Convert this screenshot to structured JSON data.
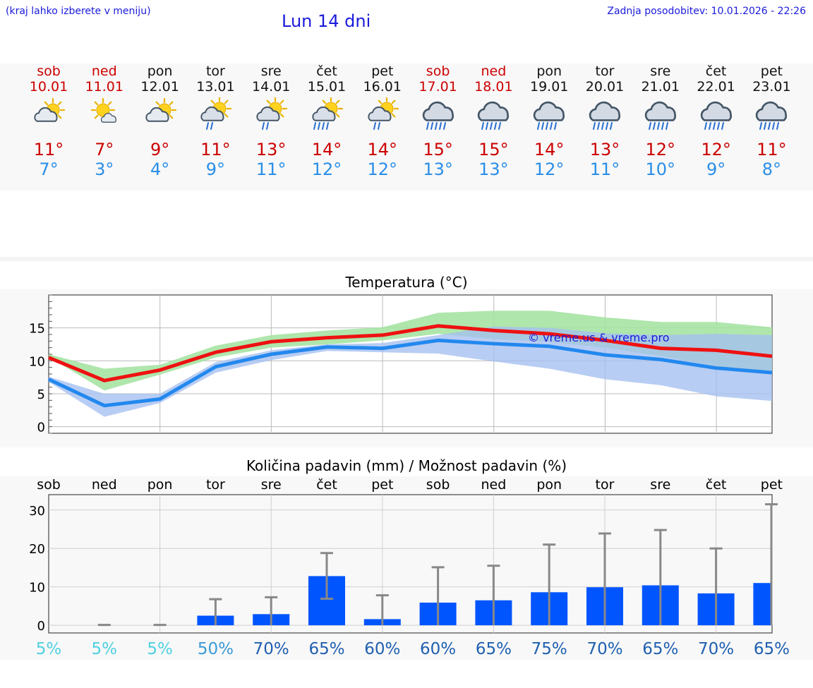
{
  "header": {
    "location_hint": "(kraj lahko izberete v meniju)",
    "title": "Lun 14 dni",
    "updated": "Zadnja posodobitev: 10.01.2026 - 22:26"
  },
  "days": [
    {
      "name": "sob",
      "date": "10.01",
      "weekend": true,
      "icon": "sun-cloud-icon",
      "hi": "11°",
      "lo": "7°"
    },
    {
      "name": "ned",
      "date": "11.01",
      "weekend": true,
      "icon": "sun-small-cloud-icon",
      "hi": "7°",
      "lo": "3°"
    },
    {
      "name": "pon",
      "date": "12.01",
      "weekend": false,
      "icon": "sun-cloud-icon",
      "hi": "9°",
      "lo": "4°"
    },
    {
      "name": "tor",
      "date": "13.01",
      "weekend": false,
      "icon": "sun-cloud-light-rain-icon",
      "hi": "11°",
      "lo": "9°"
    },
    {
      "name": "sre",
      "date": "14.01",
      "weekend": false,
      "icon": "sun-cloud-light-rain-icon",
      "hi": "13°",
      "lo": "11°"
    },
    {
      "name": "čet",
      "date": "15.01",
      "weekend": false,
      "icon": "sun-cloud-rain-icon",
      "hi": "14°",
      "lo": "12°"
    },
    {
      "name": "pet",
      "date": "16.01",
      "weekend": false,
      "icon": "sun-cloud-light-rain-icon",
      "hi": "14°",
      "lo": "12°"
    },
    {
      "name": "sob",
      "date": "17.01",
      "weekend": true,
      "icon": "cloud-rain-icon",
      "hi": "15°",
      "lo": "13°"
    },
    {
      "name": "ned",
      "date": "18.01",
      "weekend": true,
      "icon": "cloud-rain-icon",
      "hi": "15°",
      "lo": "13°"
    },
    {
      "name": "pon",
      "date": "19.01",
      "weekend": false,
      "icon": "cloud-rain-icon",
      "hi": "14°",
      "lo": "12°"
    },
    {
      "name": "tor",
      "date": "20.01",
      "weekend": false,
      "icon": "cloud-rain-icon",
      "hi": "13°",
      "lo": "11°"
    },
    {
      "name": "sre",
      "date": "21.01",
      "weekend": false,
      "icon": "cloud-rain-icon",
      "hi": "12°",
      "lo": "10°"
    },
    {
      "name": "čet",
      "date": "22.01",
      "weekend": false,
      "icon": "cloud-rain-icon",
      "hi": "12°",
      "lo": "9°"
    },
    {
      "name": "pet",
      "date": "23.01",
      "weekend": false,
      "icon": "cloud-rain-icon",
      "hi": "11°",
      "lo": "8°"
    }
  ],
  "colors": {
    "title_blue": "#1a1adc",
    "hi_red": "#cc0000",
    "lo_blue": "#2a8ee8",
    "max_line": "#ee1111",
    "min_line": "#2288ee",
    "max_band": "#a6e3a3",
    "min_band": "#a4bff0",
    "bar": "#0055ff",
    "error": "#888888",
    "chance_low": "#4fd0e0",
    "chance_mid": "#3a9ad8",
    "chance_high": "#1f5fb0"
  },
  "chart_data": [
    {
      "type": "line",
      "title": "Temperatura (°C)",
      "ylim": [
        -1,
        20
      ],
      "yticks": [
        0,
        5,
        10,
        15
      ],
      "watermark": "© vreme.us & vreme.pro",
      "categories": [
        "10.01",
        "11.01",
        "12.01",
        "13.01",
        "14.01",
        "15.01",
        "16.01",
        "17.01",
        "18.01",
        "19.01",
        "20.01",
        "21.01",
        "22.01",
        "23.01"
      ],
      "series": [
        {
          "name": "max",
          "values": [
            10.5,
            7,
            8.6,
            11.3,
            12.9,
            13.5,
            13.9,
            15.3,
            14.6,
            14.1,
            13.1,
            11.9,
            11.6,
            10.7
          ],
          "band_low": [
            10.6,
            5.5,
            7.9,
            10.5,
            12.0,
            12.5,
            13.1,
            14.1,
            13.3,
            12.9,
            12.0,
            10.7,
            9.2,
            8.0
          ],
          "band_high": [
            11.0,
            8.8,
            9.4,
            12.3,
            13.9,
            14.6,
            15.1,
            17.3,
            17.6,
            17.6,
            16.6,
            15.9,
            15.9,
            15.1
          ]
        },
        {
          "name": "min",
          "values": [
            7.2,
            3.2,
            4.2,
            9.1,
            11.0,
            12.1,
            11.9,
            13.1,
            12.6,
            12.2,
            10.9,
            10.2,
            8.9,
            8.2
          ],
          "band_low": [
            6.8,
            1.5,
            3.6,
            8.2,
            10.1,
            11.5,
            11.3,
            11.1,
            9.9,
            8.8,
            7.2,
            6.3,
            4.6,
            3.9
          ],
          "band_high": [
            7.6,
            5.0,
            5.0,
            9.8,
            11.6,
            12.5,
            12.7,
            13.9,
            15.2,
            15.0,
            14.2,
            13.9,
            14.1,
            13.9
          ]
        }
      ]
    },
    {
      "type": "bar",
      "title": "Količina padavin (mm) / Možnost padavin (%)",
      "categories": [
        "sob",
        "ned",
        "pon",
        "tor",
        "sre",
        "čet",
        "pet",
        "sob",
        "ned",
        "pon",
        "tor",
        "sre",
        "čet",
        "pet"
      ],
      "ylim": [
        -2,
        34
      ],
      "yticks": [
        0,
        10,
        20,
        30
      ],
      "values": [
        0,
        0,
        0,
        2.5,
        2.9,
        12.8,
        1.6,
        5.9,
        6.5,
        8.6,
        9.9,
        10.4,
        8.3,
        11.0
      ],
      "error_low": [
        0,
        0,
        0,
        0,
        0,
        6.9,
        0,
        0,
        0,
        0,
        0,
        0,
        0,
        0
      ],
      "error_high": [
        0,
        0.1,
        0.1,
        6.8,
        7.3,
        18.8,
        7.8,
        15.1,
        15.5,
        21.0,
        23.9,
        24.8,
        20.0,
        31.5
      ],
      "chance": [
        "5%",
        "5%",
        "5%",
        "50%",
        "70%",
        "65%",
        "60%",
        "60%",
        "65%",
        "75%",
        "70%",
        "65%",
        "70%",
        "65%"
      ]
    }
  ]
}
